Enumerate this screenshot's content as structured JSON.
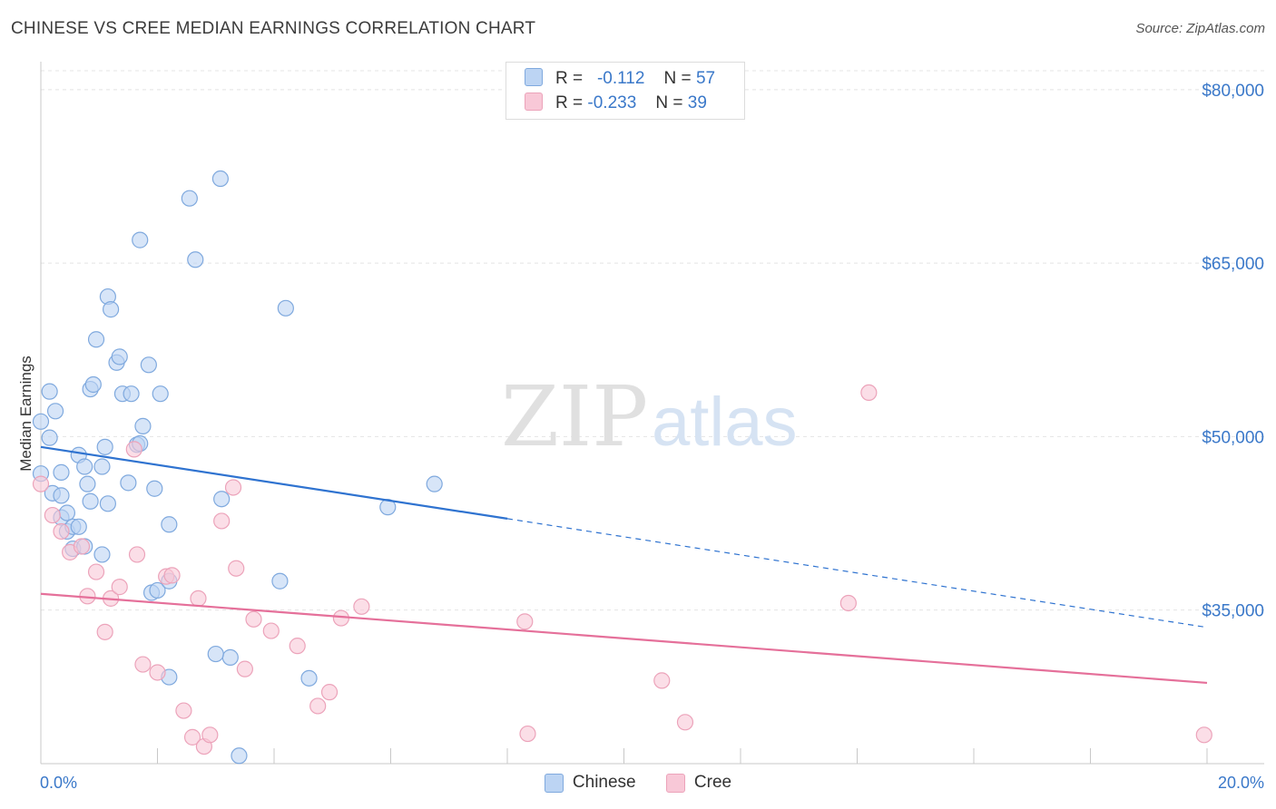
{
  "title": "CHINESE VS CREE MEDIAN EARNINGS CORRELATION CHART",
  "source": "Source: ZipAtlas.com",
  "watermark": {
    "zip": "ZIP",
    "atlas": "atlas"
  },
  "legend": {
    "rows": [
      {
        "r_label": "R =",
        "r_value": "-0.112",
        "n_label": "N =",
        "n_value": "57"
      },
      {
        "r_label": "R =",
        "r_value": "-0.233",
        "n_label": "N =",
        "n_value": "39"
      }
    ]
  },
  "bottom_legend": {
    "series1": "Chinese",
    "series2": "Cree"
  },
  "colors": {
    "chinese_fill": "#bcd4f3",
    "chinese_stroke": "#7fa9de",
    "chinese_line": "#2f73d0",
    "cree_fill": "#f8c8d7",
    "cree_stroke": "#eca3ba",
    "cree_line": "#e5709a",
    "tick_text": "#3a78c9",
    "grid": "#e4e4e4"
  },
  "chart_data": {
    "type": "scatter",
    "title": "CHINESE VS CREE MEDIAN EARNINGS CORRELATION CHART",
    "xlabel": "",
    "ylabel": "Median Earnings",
    "xlim": [
      0,
      20
    ],
    "ylim": [
      20000,
      83000
    ],
    "x_tick_labels": [
      "0.0%",
      "20.0%"
    ],
    "y_ticks": [
      35000,
      50000,
      65000,
      80000
    ],
    "y_tick_labels": [
      "$35,000",
      "$50,000",
      "$65,000",
      "$80,000"
    ],
    "grid": true,
    "series": [
      {
        "name": "Chinese",
        "points": [
          [
            0.15,
            53900
          ],
          [
            0.25,
            52200
          ],
          [
            0.0,
            51300
          ],
          [
            0.15,
            49900
          ],
          [
            0.0,
            46800
          ],
          [
            0.35,
            46900
          ],
          [
            0.2,
            45100
          ],
          [
            0.35,
            44900
          ],
          [
            0.35,
            43000
          ],
          [
            0.45,
            43400
          ],
          [
            0.45,
            41800
          ],
          [
            0.55,
            42200
          ],
          [
            0.55,
            40300
          ],
          [
            0.65,
            42200
          ],
          [
            0.75,
            40500
          ],
          [
            0.65,
            48400
          ],
          [
            0.75,
            47400
          ],
          [
            0.8,
            45900
          ],
          [
            0.85,
            44400
          ],
          [
            0.85,
            54100
          ],
          [
            0.9,
            54500
          ],
          [
            1.05,
            47400
          ],
          [
            1.1,
            49100
          ],
          [
            1.15,
            44200
          ],
          [
            1.05,
            39800
          ],
          [
            1.15,
            62100
          ],
          [
            1.2,
            61000
          ],
          [
            0.95,
            58400
          ],
          [
            1.3,
            56400
          ],
          [
            1.35,
            56900
          ],
          [
            1.4,
            53700
          ],
          [
            1.55,
            53700
          ],
          [
            1.65,
            49300
          ],
          [
            1.7,
            49400
          ],
          [
            1.5,
            46000
          ],
          [
            1.75,
            50900
          ],
          [
            1.85,
            56200
          ],
          [
            1.95,
            45500
          ],
          [
            2.05,
            53700
          ],
          [
            2.2,
            42400
          ],
          [
            1.9,
            36500
          ],
          [
            2.0,
            36700
          ],
          [
            2.2,
            37500
          ],
          [
            1.7,
            67000
          ],
          [
            2.55,
            70600
          ],
          [
            2.65,
            65300
          ],
          [
            3.08,
            72300
          ],
          [
            3.1,
            44600
          ],
          [
            4.2,
            61100
          ],
          [
            4.1,
            37500
          ],
          [
            4.6,
            29100
          ],
          [
            3.25,
            30900
          ],
          [
            3.4,
            22400
          ],
          [
            5.95,
            43900
          ],
          [
            6.75,
            45900
          ],
          [
            2.2,
            29200
          ],
          [
            3.0,
            31200
          ]
        ]
      },
      {
        "name": "Cree",
        "points": [
          [
            0.0,
            45900
          ],
          [
            0.2,
            43200
          ],
          [
            0.35,
            41800
          ],
          [
            0.5,
            40000
          ],
          [
            0.7,
            40500
          ],
          [
            0.8,
            36200
          ],
          [
            0.95,
            38300
          ],
          [
            1.1,
            33100
          ],
          [
            1.2,
            36000
          ],
          [
            1.35,
            37000
          ],
          [
            1.6,
            48900
          ],
          [
            1.65,
            39800
          ],
          [
            1.75,
            30300
          ],
          [
            2.0,
            29600
          ],
          [
            2.15,
            37900
          ],
          [
            2.25,
            38000
          ],
          [
            2.45,
            26300
          ],
          [
            2.6,
            24000
          ],
          [
            2.7,
            36000
          ],
          [
            2.8,
            23200
          ],
          [
            2.9,
            24200
          ],
          [
            3.1,
            42700
          ],
          [
            3.3,
            45600
          ],
          [
            3.35,
            38600
          ],
          [
            3.5,
            29900
          ],
          [
            3.65,
            34200
          ],
          [
            3.95,
            33200
          ],
          [
            4.4,
            31900
          ],
          [
            4.75,
            26700
          ],
          [
            4.95,
            27900
          ],
          [
            5.15,
            34300
          ],
          [
            5.5,
            35300
          ],
          [
            8.3,
            34000
          ],
          [
            8.35,
            24300
          ],
          [
            10.65,
            28900
          ],
          [
            11.05,
            25300
          ],
          [
            13.85,
            35600
          ],
          [
            14.2,
            53800
          ],
          [
            19.95,
            24200
          ]
        ]
      }
    ],
    "trend_lines": [
      {
        "name": "Chinese",
        "x": [
          0,
          8
        ],
        "y": [
          49100,
          42900
        ],
        "dashed_to": [
          20,
          33500
        ]
      },
      {
        "name": "Cree",
        "x": [
          0,
          20
        ],
        "y": [
          36400,
          28700
        ]
      }
    ]
  }
}
